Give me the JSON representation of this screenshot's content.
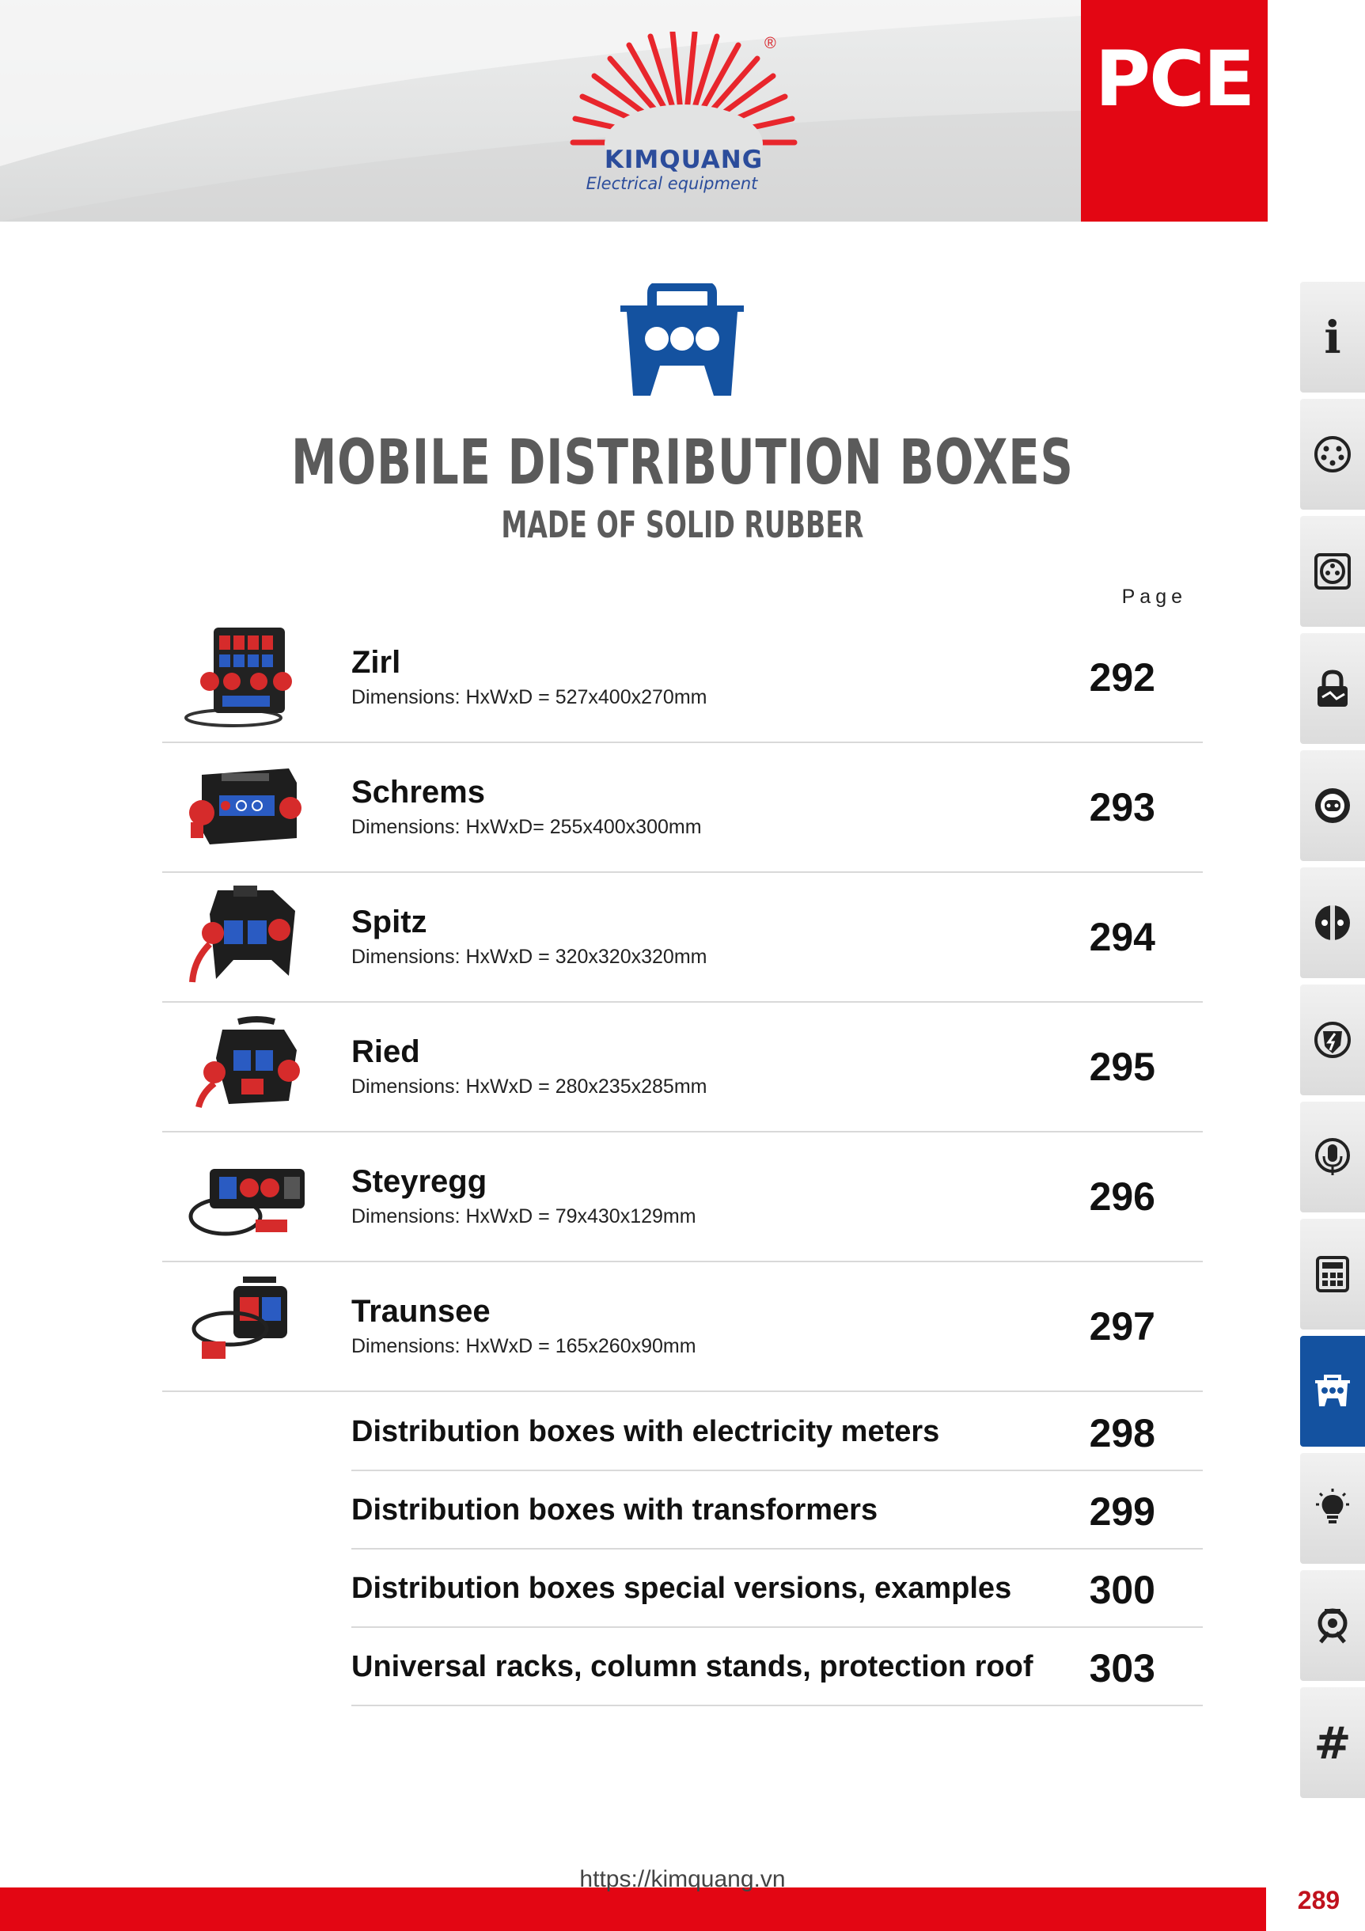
{
  "header": {
    "brand_name": "KIMQUANG",
    "brand_tagline": "Electrical equipment",
    "registered_mark": "®",
    "pce_label": "PCE",
    "brand_colors": {
      "red": "#e30613",
      "blue": "#1452a0",
      "logo_blue": "#2b4c9b"
    }
  },
  "category_icon": "mobile-distribution-box-icon",
  "title": "MOBILE DISTRIBUTION BOXES",
  "subtitle": "MADE OF SOLID RUBBER",
  "page_column_label": "Page",
  "products": [
    {
      "name": "Zirl",
      "dimensions": "Dimensions: HxWxD = 527x400x270mm",
      "page": "292",
      "image": "zirl-product-image"
    },
    {
      "name": "Schrems",
      "dimensions": "Dimensions: HxWxD= 255x400x300mm",
      "page": "293",
      "image": "schrems-product-image"
    },
    {
      "name": "Spitz",
      "dimensions": "Dimensions: HxWxD = 320x320x320mm",
      "page": "294",
      "image": "spitz-product-image"
    },
    {
      "name": "Ried",
      "dimensions": "Dimensions: HxWxD = 280x235x285mm",
      "page": "295",
      "image": "ried-product-image"
    },
    {
      "name": "Steyregg",
      "dimensions": "Dimensions: HxWxD = 79x430x129mm",
      "page": "296",
      "image": "steyregg-product-image"
    },
    {
      "name": "Traunsee",
      "dimensions": "Dimensions: HxWxD = 165x260x90mm",
      "page": "297",
      "image": "traunsee-product-image"
    }
  ],
  "links": [
    {
      "label": "Distribution boxes with electricity meters",
      "page": "298"
    },
    {
      "label": "Distribution boxes with transformers",
      "page": "299"
    },
    {
      "label": "Distribution boxes special versions, examples",
      "page": "300"
    },
    {
      "label": "Universal racks, column stands, protection roof",
      "page": "303"
    }
  ],
  "sidebar_tabs": [
    {
      "icon": "info-icon",
      "glyph": "i",
      "active": false
    },
    {
      "icon": "socket-pins-icon",
      "glyph": "",
      "active": false
    },
    {
      "icon": "square-socket-icon",
      "glyph": "",
      "active": false
    },
    {
      "icon": "padlock-plug-icon",
      "glyph": "",
      "active": false
    },
    {
      "icon": "round-socket-icon",
      "glyph": "",
      "active": false
    },
    {
      "icon": "schuko-plug-icon",
      "glyph": "",
      "active": false
    },
    {
      "icon": "shield-bolt-icon",
      "glyph": "",
      "active": false
    },
    {
      "icon": "microphone-icon",
      "glyph": "",
      "active": false
    },
    {
      "icon": "calculator-icon",
      "glyph": "",
      "active": false
    },
    {
      "icon": "distribution-box-icon",
      "glyph": "",
      "active": true
    },
    {
      "icon": "light-bulb-icon",
      "glyph": "",
      "active": false
    },
    {
      "icon": "cable-reel-icon",
      "glyph": "",
      "active": false
    },
    {
      "icon": "hash-icon",
      "glyph": "#",
      "active": false
    }
  ],
  "footer": {
    "url": "https://kimquang.vn",
    "page_number": "289"
  }
}
